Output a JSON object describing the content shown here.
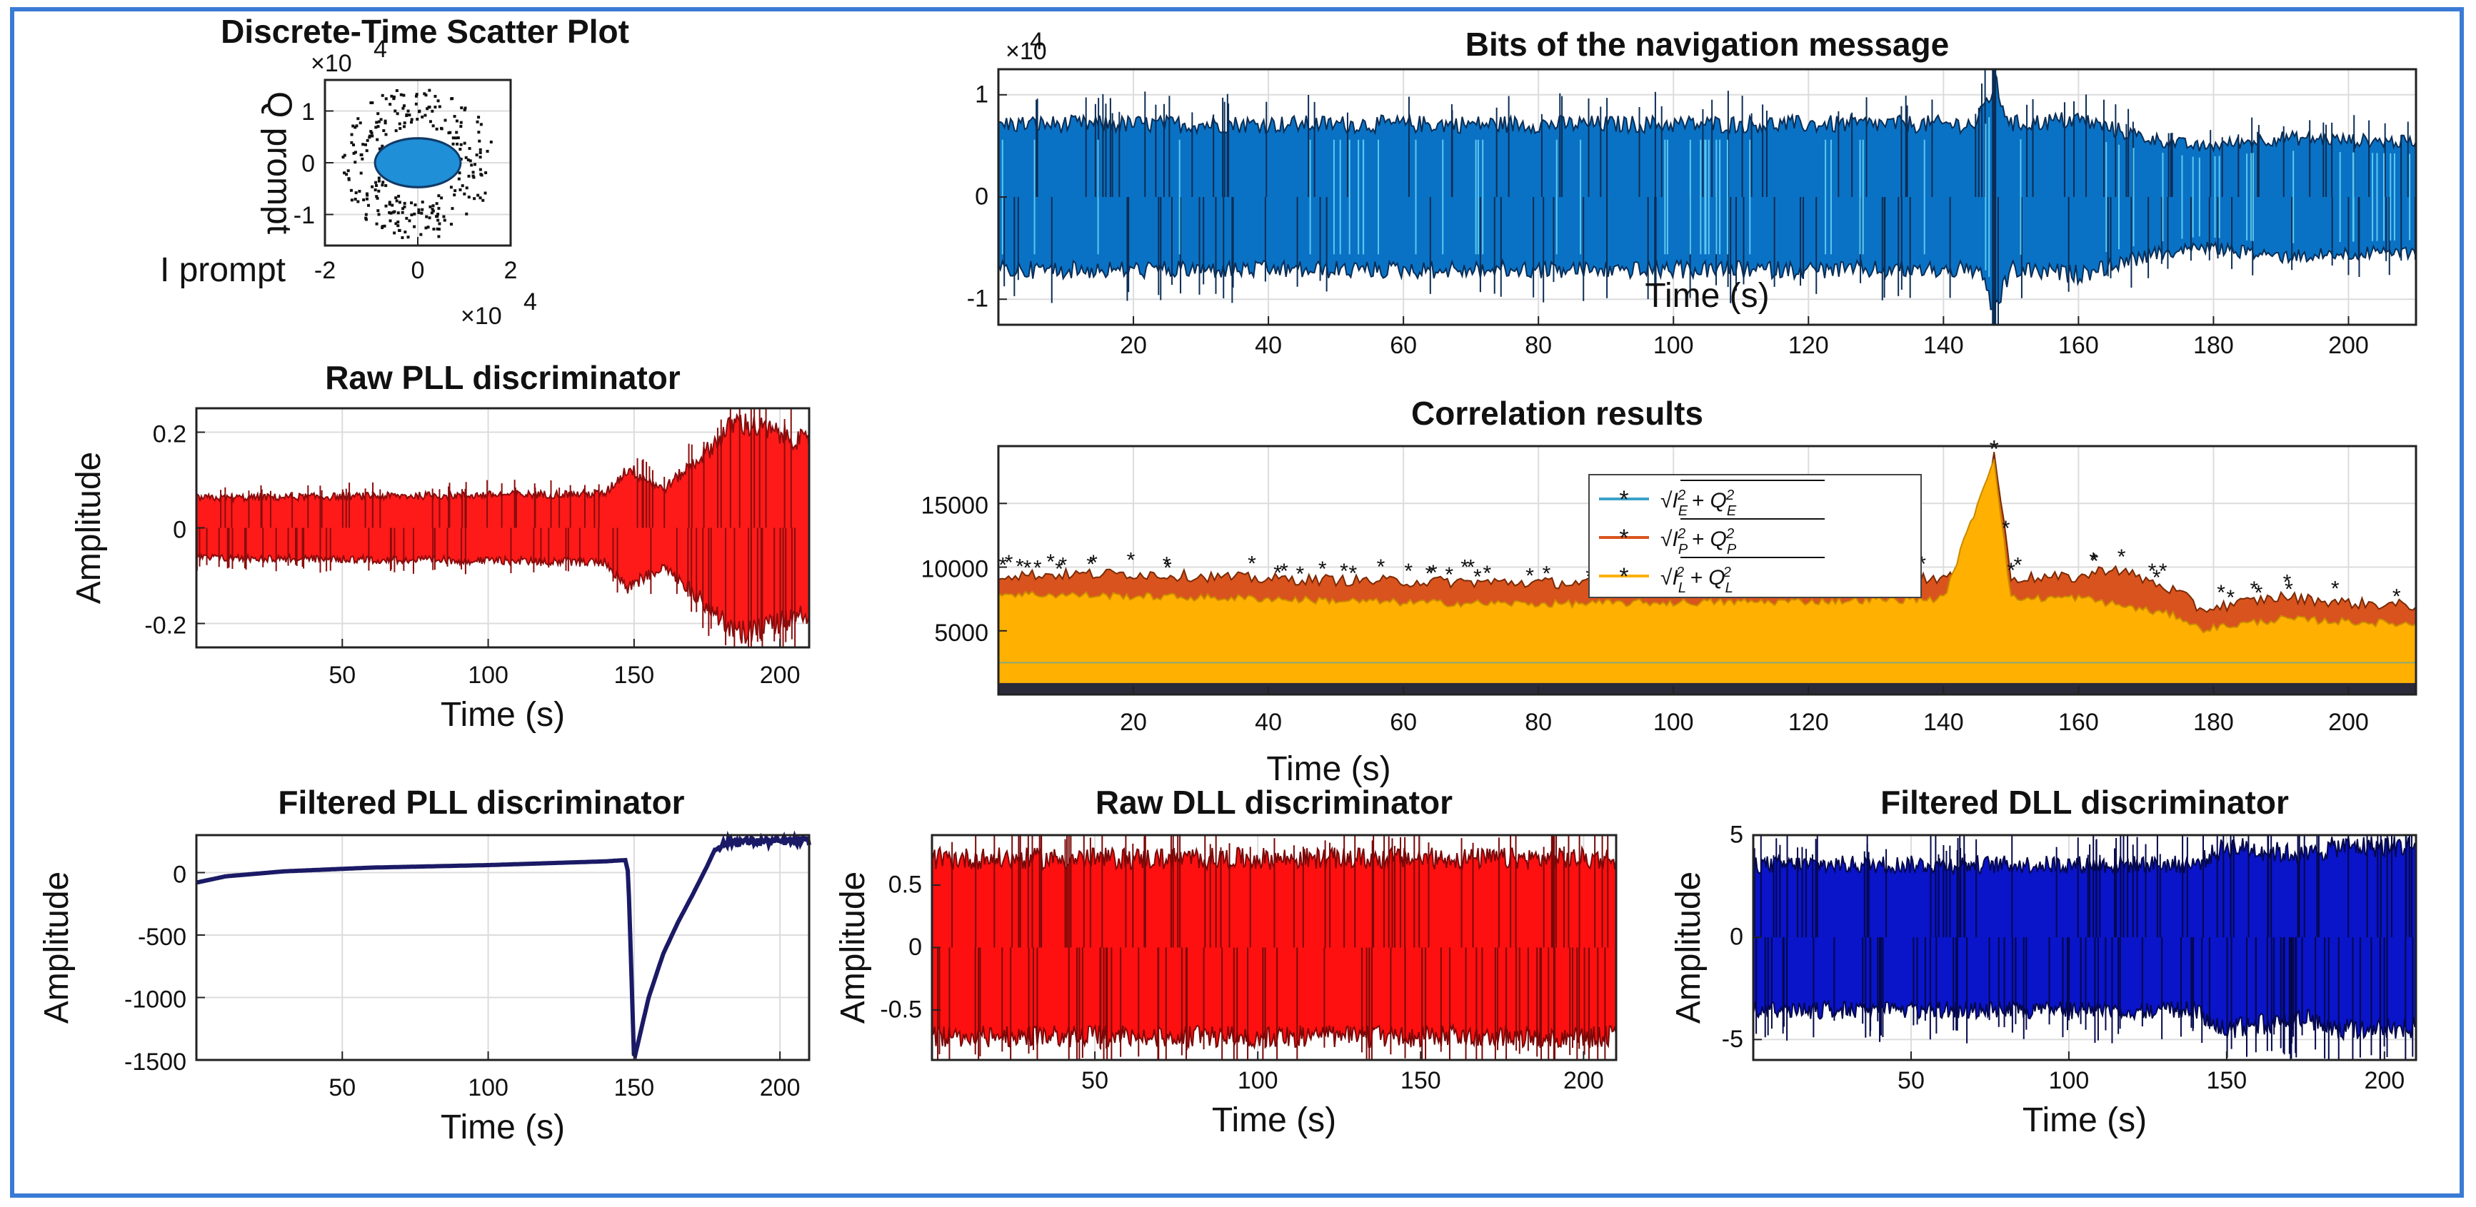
{
  "colors": {
    "frame": "#3a7bd5",
    "scatter_dots": "#111111",
    "scatter_cloud": "#1f8fd8",
    "nav_bits": "#0a72c4",
    "raw_pll": "#ff1a1a",
    "filtered_pll": "#1a1a66",
    "raw_dll": "#ff1010",
    "filtered_dll": "#0a14c8",
    "corr_early": "#3aa3c9",
    "corr_prompt": "#d9531e",
    "corr_late": "#ffb000"
  },
  "chart_data": [
    {
      "id": "scatter",
      "type": "scatter",
      "title": "Discrete-Time Scatter Plot",
      "xlabel": "I prompt",
      "ylabel": "Q prompt",
      "xlim": [
        -2,
        2
      ],
      "ylim": [
        -1.6,
        1.6
      ],
      "xticks": [
        "-2",
        "0",
        "2"
      ],
      "yticks": [
        "1",
        "0",
        "-1"
      ],
      "y_exponent": "×10",
      "y_exponent_power": "4",
      "x_exponent": "×10",
      "x_exponent_power": "4",
      "cloud_radius": [
        0.9,
        0.45
      ],
      "outer_ring_radius": [
        1.5,
        1.35
      ],
      "grid": true
    },
    {
      "id": "nav",
      "type": "line",
      "title": "Bits of the navigation message",
      "xlabel": "Time (s)",
      "xlim": [
        0,
        210
      ],
      "ylim": [
        -1.25,
        1.25
      ],
      "xticks": [
        "20",
        "40",
        "60",
        "80",
        "100",
        "120",
        "140",
        "160",
        "180",
        "200"
      ],
      "yticks": [
        "1",
        "0",
        "-1"
      ],
      "y_exponent": "×10",
      "y_exponent_power": "4",
      "series": [
        {
          "values_envelope": [
            [
              0,
              0.8
            ],
            [
              145,
              0.8
            ],
            [
              147.5,
              1.25
            ],
            [
              150,
              0.8
            ],
            [
              160,
              0.85
            ],
            [
              170,
              0.65
            ],
            [
              178,
              0.55
            ],
            [
              190,
              0.65
            ],
            [
              210,
              0.6
            ]
          ]
        }
      ],
      "grid": true
    },
    {
      "id": "raw_pll",
      "type": "line",
      "title": "Raw PLL discriminator",
      "xlabel": "Time (s)",
      "ylabel": "Amplitude",
      "xlim": [
        0,
        210
      ],
      "ylim": [
        -0.25,
        0.25
      ],
      "xticks": [
        "50",
        "100",
        "150",
        "200"
      ],
      "yticks": [
        "0.2",
        "0",
        "-0.2"
      ],
      "series": [
        {
          "values_envelope": [
            [
              0,
              0.07
            ],
            [
              140,
              0.08
            ],
            [
              148,
              0.14
            ],
            [
              160,
              0.09
            ],
            [
              175,
              0.18
            ],
            [
              185,
              0.25
            ],
            [
              210,
              0.2
            ]
          ]
        }
      ],
      "grid": true
    },
    {
      "id": "corr",
      "type": "line",
      "title": "Correlation results",
      "xlabel": "Time (s)",
      "xlim": [
        0,
        210
      ],
      "ylim": [
        0,
        19500
      ],
      "xticks": [
        "20",
        "40",
        "60",
        "80",
        "100",
        "120",
        "140",
        "160",
        "180",
        "200"
      ],
      "yticks": [
        "15000",
        "10000",
        "5000"
      ],
      "legend": [
        "E",
        "P",
        "L"
      ],
      "legend_position": "top-center",
      "series": [
        {
          "name": "E",
          "values": [
            [
              0,
              2500
            ],
            [
              210,
              2500
            ]
          ]
        },
        {
          "name": "P",
          "values": [
            [
              0,
              9200
            ],
            [
              20,
              9300
            ],
            [
              40,
              8900
            ],
            [
              60,
              8700
            ],
            [
              80,
              8600
            ],
            [
              100,
              8500
            ],
            [
              120,
              8700
            ],
            [
              140,
              9000
            ],
            [
              145,
              9000
            ],
            [
              147.5,
              19000
            ],
            [
              150,
              9000
            ],
            [
              160,
              9000
            ],
            [
              165,
              9800
            ],
            [
              175,
              7800
            ],
            [
              178,
              6500
            ],
            [
              190,
              7500
            ],
            [
              200,
              7000
            ],
            [
              210,
              6800
            ]
          ]
        },
        {
          "name": "L",
          "values": [
            [
              0,
              7800
            ],
            [
              20,
              7600
            ],
            [
              40,
              7400
            ],
            [
              60,
              7100
            ],
            [
              80,
              7000
            ],
            [
              100,
              7100
            ],
            [
              120,
              7200
            ],
            [
              140,
              7400
            ],
            [
              147.5,
              18500
            ],
            [
              150,
              7400
            ],
            [
              160,
              7500
            ],
            [
              175,
              6000
            ],
            [
              178,
              5000
            ],
            [
              190,
              5800
            ],
            [
              210,
              5400
            ]
          ]
        }
      ],
      "grid": true
    },
    {
      "id": "filtered_pll",
      "type": "line",
      "title": "Filtered PLL discriminator",
      "xlabel": "Time (s)",
      "ylabel": "Amplitude",
      "xlim": [
        0,
        210
      ],
      "ylim": [
        -1500,
        300
      ],
      "xticks": [
        "50",
        "100",
        "150",
        "200"
      ],
      "yticks": [
        "0",
        "-500",
        "-1000",
        "-1500"
      ],
      "series": [
        {
          "values": [
            [
              0,
              -80
            ],
            [
              10,
              -30
            ],
            [
              30,
              10
            ],
            [
              60,
              40
            ],
            [
              100,
              60
            ],
            [
              140,
              90
            ],
            [
              147,
              100
            ],
            [
              148,
              0
            ],
            [
              150,
              -1500
            ],
            [
              155,
              -1000
            ],
            [
              160,
              -650
            ],
            [
              165,
              -400
            ],
            [
              170,
              -180
            ],
            [
              175,
              50
            ],
            [
              178,
              200
            ],
            [
              183,
              250
            ],
            [
              210,
              250
            ]
          ]
        }
      ],
      "grid": true
    },
    {
      "id": "raw_dll",
      "type": "line",
      "title": "Raw DLL discriminator",
      "xlabel": "Time (s)",
      "ylabel": "Amplitude",
      "xlim": [
        0,
        210
      ],
      "ylim": [
        -0.9,
        0.9
      ],
      "xticks": [
        "50",
        "100",
        "150",
        "200"
      ],
      "yticks": [
        "0.5",
        "0",
        "-0.5"
      ],
      "series": [
        {
          "values_envelope": [
            [
              0,
              0.8
            ],
            [
              210,
              0.8
            ]
          ]
        }
      ],
      "grid": true
    },
    {
      "id": "filtered_dll",
      "type": "line",
      "title": "Filtered DLL discriminator",
      "xlabel": "Time (s)",
      "ylabel": "Amplitude",
      "xlim": [
        0,
        210
      ],
      "ylim": [
        -6,
        5
      ],
      "xticks": [
        "50",
        "100",
        "150",
        "200"
      ],
      "yticks": [
        "5",
        "0",
        "-5"
      ],
      "series": [
        {
          "values_envelope": [
            [
              0,
              4
            ],
            [
              140,
              4
            ],
            [
              150,
              5
            ],
            [
              175,
              4.5
            ],
            [
              185,
              5
            ],
            [
              210,
              5
            ]
          ]
        }
      ],
      "grid": true
    }
  ]
}
